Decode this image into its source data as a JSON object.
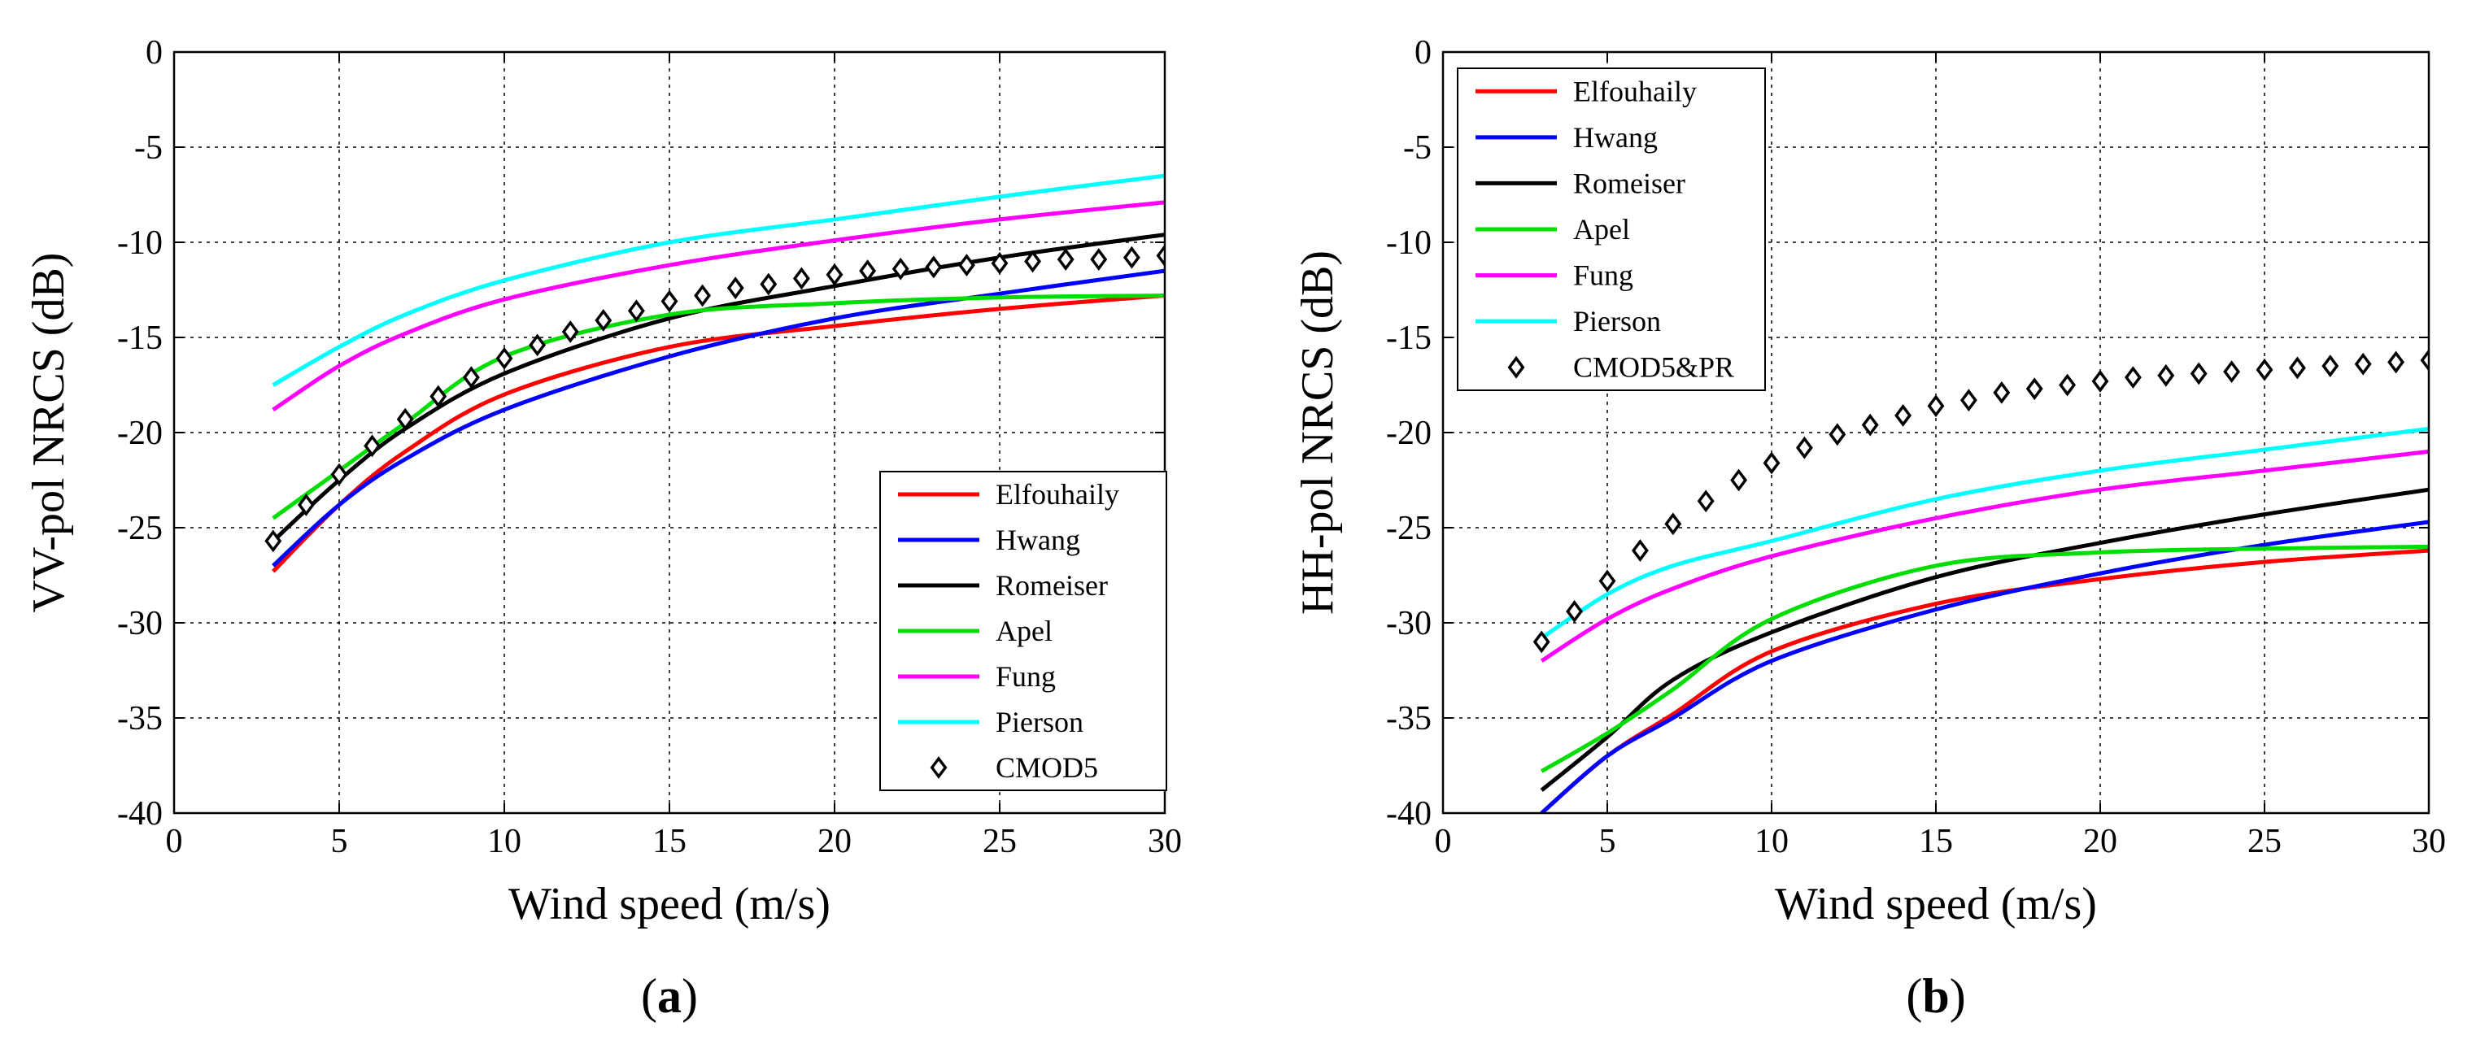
{
  "colors": {
    "Elfouhaily": "#ff0000",
    "Hwang": "#0000ff",
    "Romeiser": "#000000",
    "Apel": "#00dd00",
    "Fung": "#ff00ff",
    "Pierson": "#00ffff",
    "markers": "#000000"
  },
  "chart_data": [
    {
      "type": "line",
      "panel_label": "a",
      "title": "",
      "xlabel": "Wind speed (m/s)",
      "ylabel": "VV-pol NRCS (dB)",
      "xlim": [
        0,
        30
      ],
      "ylim": [
        -40,
        0
      ],
      "xticks": [
        0,
        5,
        10,
        15,
        20,
        25,
        30
      ],
      "yticks": [
        -40,
        -35,
        -30,
        -25,
        -20,
        -15,
        -10,
        -5,
        0
      ],
      "grid": true,
      "legend_position": "bottom-right",
      "x": [
        3,
        5,
        7,
        10,
        15,
        20,
        25,
        30
      ],
      "series": [
        {
          "name": "Elfouhaily",
          "values": [
            -27.3,
            -23.8,
            -21.0,
            -18.0,
            -15.5,
            -14.4,
            -13.5,
            -12.8
          ]
        },
        {
          "name": "Hwang",
          "values": [
            -27.0,
            -23.8,
            -21.4,
            -18.8,
            -16.0,
            -14.0,
            -12.7,
            -11.5
          ]
        },
        {
          "name": "Romeiser",
          "values": [
            -25.7,
            -22.5,
            -19.8,
            -16.9,
            -14.0,
            -12.3,
            -10.8,
            -9.6
          ]
        },
        {
          "name": "Apel",
          "values": [
            -24.5,
            -22.0,
            -19.5,
            -16.0,
            -13.8,
            -13.2,
            -12.9,
            -12.8
          ]
        },
        {
          "name": "Fung",
          "values": [
            -18.8,
            -16.5,
            -14.8,
            -13.0,
            -11.2,
            -9.9,
            -8.8,
            -7.9
          ]
        },
        {
          "name": "Pierson",
          "values": [
            -17.5,
            -15.5,
            -13.8,
            -12.0,
            -10.0,
            -8.8,
            -7.6,
            -6.5
          ]
        }
      ],
      "marker_series": {
        "name": "CMOD5",
        "x": [
          3,
          4,
          5,
          6,
          7,
          8,
          9,
          10,
          11,
          12,
          13,
          14,
          15,
          16,
          17,
          18,
          19,
          20,
          21,
          22,
          23,
          24,
          25,
          26,
          27,
          28,
          29,
          30
        ],
        "values": [
          -25.7,
          -23.8,
          -22.2,
          -20.7,
          -19.3,
          -18.1,
          -17.1,
          -16.1,
          -15.4,
          -14.7,
          -14.1,
          -13.6,
          -13.1,
          -12.8,
          -12.4,
          -12.2,
          -11.9,
          -11.7,
          -11.5,
          -11.4,
          -11.3,
          -11.2,
          -11.1,
          -11.0,
          -10.9,
          -10.9,
          -10.8,
          -10.7
        ]
      },
      "legend": [
        "Elfouhaily",
        "Hwang",
        "Romeiser",
        "Apel",
        "Fung",
        "Pierson",
        "CMOD5"
      ]
    },
    {
      "type": "line",
      "panel_label": "b",
      "title": "",
      "xlabel": "Wind speed (m/s)",
      "ylabel": "HH-pol NRCS (dB)",
      "xlim": [
        0,
        30
      ],
      "ylim": [
        -40,
        0
      ],
      "xticks": [
        0,
        5,
        10,
        15,
        20,
        25,
        30
      ],
      "yticks": [
        -40,
        -35,
        -30,
        -25,
        -20,
        -15,
        -10,
        -5,
        0
      ],
      "grid": true,
      "legend_position": "top-left",
      "x": [
        3,
        5,
        7,
        10,
        15,
        20,
        25,
        30
      ],
      "series": [
        {
          "name": "Elfouhaily",
          "values": [
            -40.0,
            -37.0,
            -34.8,
            -31.5,
            -29.0,
            -27.7,
            -26.8,
            -26.2
          ]
        },
        {
          "name": "Hwang",
          "values": [
            -40.0,
            -37.0,
            -35.0,
            -32.0,
            -29.3,
            -27.4,
            -25.9,
            -24.7
          ]
        },
        {
          "name": "Romeiser",
          "values": [
            -38.8,
            -36.0,
            -33.0,
            -30.5,
            -27.6,
            -25.8,
            -24.3,
            -23.0
          ]
        },
        {
          "name": "Apel",
          "values": [
            -37.8,
            -35.8,
            -33.5,
            -29.8,
            -27.0,
            -26.3,
            -26.1,
            -26.0
          ]
        },
        {
          "name": "Fung",
          "values": [
            -32.0,
            -29.8,
            -28.2,
            -26.5,
            -24.5,
            -23.0,
            -22.0,
            -21.0
          ]
        },
        {
          "name": "Pierson",
          "values": [
            -30.8,
            -28.5,
            -27.0,
            -25.7,
            -23.5,
            -22.0,
            -20.9,
            -19.8
          ]
        }
      ],
      "marker_series": {
        "name": "CMOD5&PR",
        "x": [
          3,
          4,
          5,
          6,
          7,
          8,
          9,
          10,
          11,
          12,
          13,
          14,
          15,
          16,
          17,
          18,
          19,
          20,
          21,
          22,
          23,
          24,
          25,
          26,
          27,
          28,
          29,
          30
        ],
        "values": [
          -31.0,
          -29.4,
          -27.8,
          -26.2,
          -24.8,
          -23.6,
          -22.5,
          -21.6,
          -20.8,
          -20.1,
          -19.6,
          -19.1,
          -18.6,
          -18.3,
          -17.9,
          -17.7,
          -17.5,
          -17.3,
          -17.1,
          -17.0,
          -16.9,
          -16.8,
          -16.7,
          -16.6,
          -16.5,
          -16.4,
          -16.3,
          -16.2
        ]
      },
      "legend": [
        "Elfouhaily",
        "Hwang",
        "Romeiser",
        "Apel",
        "Fung",
        "Pierson",
        "CMOD5&PR"
      ]
    }
  ]
}
